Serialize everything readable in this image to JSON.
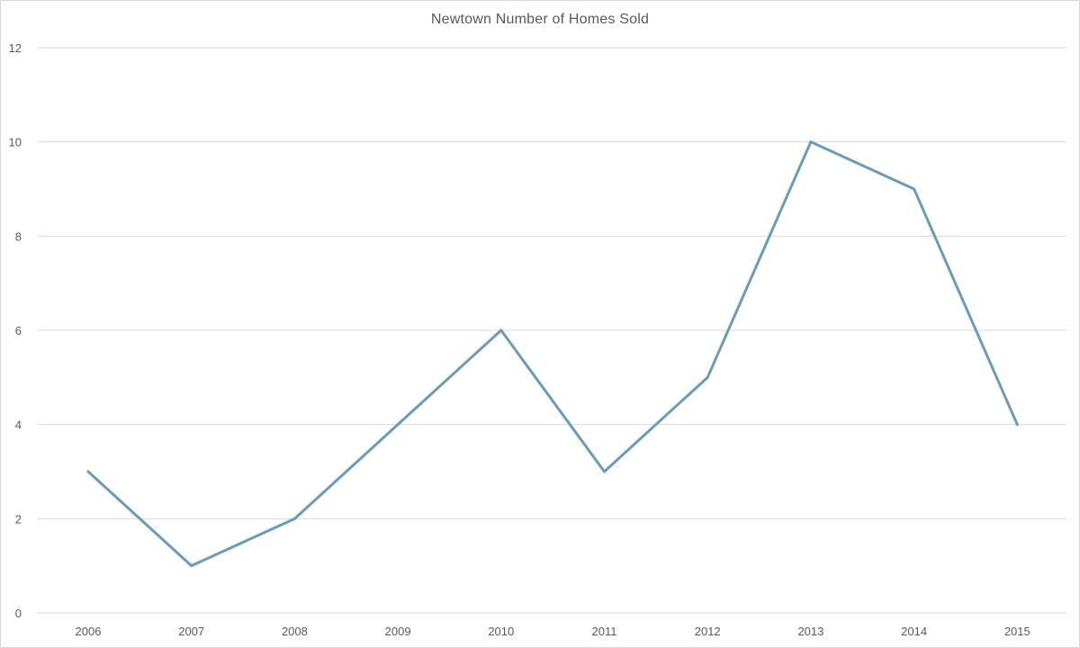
{
  "chart_data": {
    "type": "line",
    "title": "Newtown Number of Homes Sold",
    "xlabel": "",
    "ylabel": "",
    "categories": [
      "2006",
      "2007",
      "2008",
      "2009",
      "2010",
      "2011",
      "2012",
      "2013",
      "2014",
      "2015"
    ],
    "series": [
      {
        "values": [
          3,
          1,
          2,
          4,
          6,
          3,
          5,
          10,
          9,
          4
        ],
        "color": "#6b9bbb"
      }
    ],
    "ylim": [
      0,
      12
    ],
    "yticks": [
      0,
      2,
      4,
      6,
      8,
      10,
      12
    ],
    "grid": true,
    "gridColor": "#d9d9d9",
    "legend": "none"
  }
}
